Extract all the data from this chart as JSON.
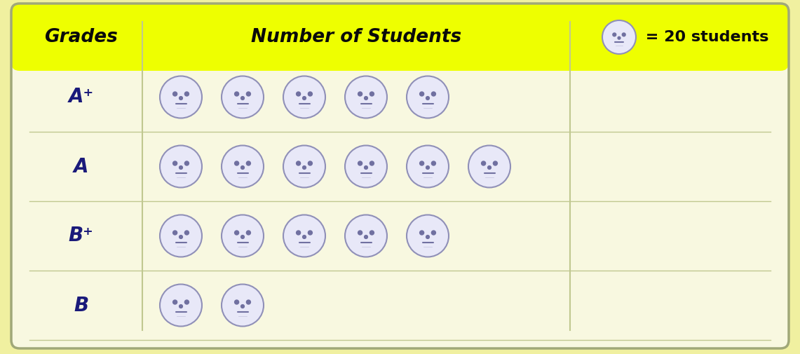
{
  "grades": [
    "A⁺",
    "A",
    "B⁺",
    "B"
  ],
  "num_faces": [
    5,
    6,
    5,
    2
  ],
  "header_col1": "Grades",
  "header_col2": "Number of Students",
  "header_legend_text": " = 20 students",
  "outer_bg_color": "#f0f0a0",
  "header_bg_color": "#eeff00",
  "border_color": "#a0a878",
  "face_fill_color": "#e8e8f8",
  "face_border_color": "#9090b8",
  "face_feature_color": "#7070a0",
  "grade_text_color": "#1a1a7a",
  "header_text_color": "#0a0a0a",
  "table_body_bg": "#f8f8e0",
  "line_color": "#c0c890"
}
